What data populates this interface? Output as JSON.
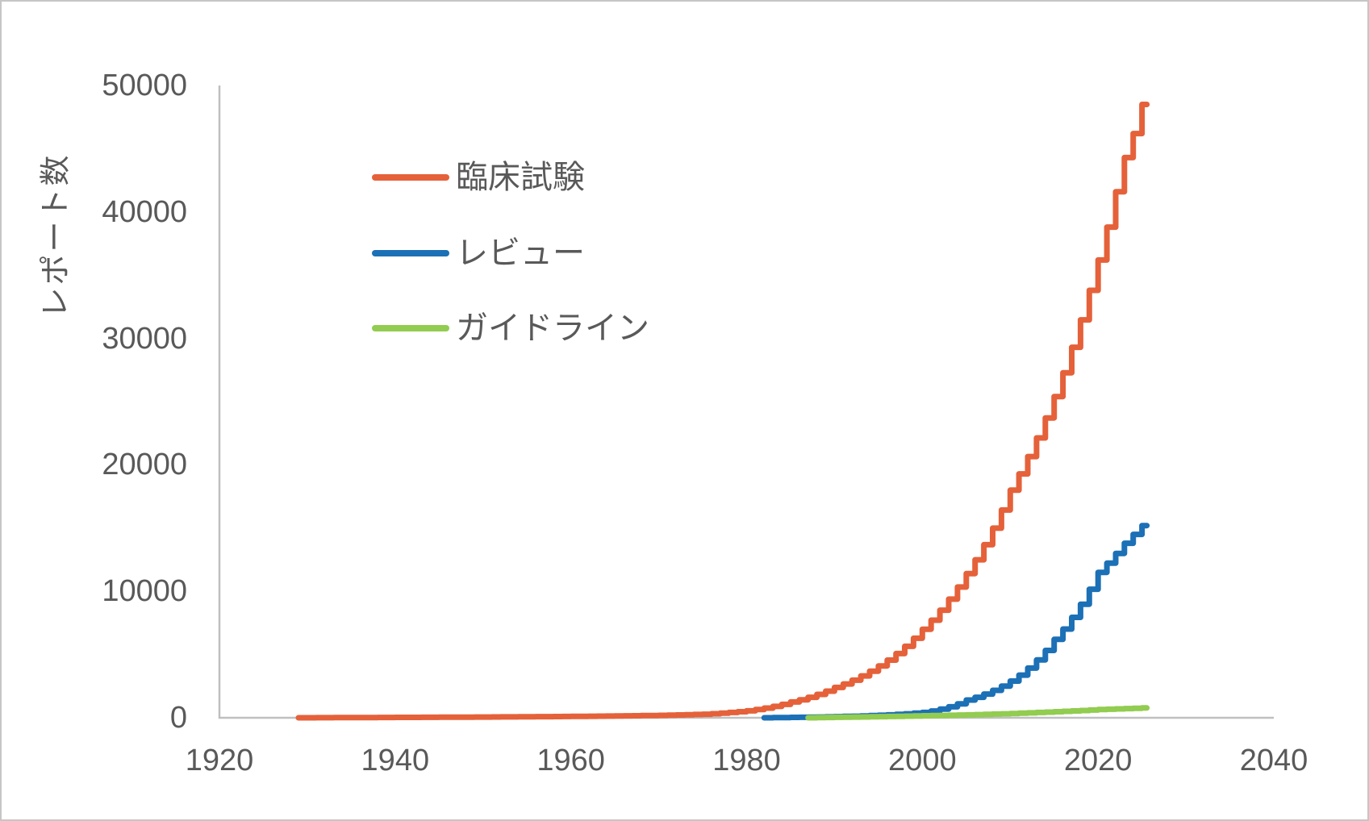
{
  "chart_data": {
    "type": "line",
    "title": "",
    "xlabel": "",
    "ylabel": "レポート数",
    "xlim": [
      1920,
      2040
    ],
    "ylim": [
      0,
      50000
    ],
    "x_ticks": [
      1920,
      1940,
      1960,
      1980,
      2000,
      2020,
      2040
    ],
    "y_ticks": [
      0,
      10000,
      20000,
      30000,
      40000,
      50000
    ],
    "grid": false,
    "legend_position": "upper-left-inside",
    "line_style": "steps-post (cumulative count per year)",
    "series": [
      {
        "name": "臨床試験",
        "color": "#E5613A",
        "points": [
          [
            1929,
            0
          ],
          [
            1940,
            30
          ],
          [
            1950,
            60
          ],
          [
            1960,
            110
          ],
          [
            1970,
            190
          ],
          [
            1975,
            280
          ],
          [
            1980,
            550
          ],
          [
            1985,
            1250
          ],
          [
            1990,
            2400
          ],
          [
            1995,
            4100
          ],
          [
            2000,
            7000
          ],
          [
            2005,
            11400
          ],
          [
            2010,
            18000
          ],
          [
            2015,
            25400
          ],
          [
            2019,
            33800
          ],
          [
            2020,
            36200
          ],
          [
            2021,
            38800
          ],
          [
            2022,
            41600
          ],
          [
            2023,
            44300
          ],
          [
            2024,
            46200
          ],
          [
            2025,
            48500
          ]
        ]
      },
      {
        "name": "レビュー",
        "color": "#1C70B6",
        "points": [
          [
            1982,
            0
          ],
          [
            1985,
            30
          ],
          [
            1990,
            90
          ],
          [
            1995,
            200
          ],
          [
            2000,
            420
          ],
          [
            2005,
            1400
          ],
          [
            2010,
            2900
          ],
          [
            2015,
            6200
          ],
          [
            2020,
            11500
          ],
          [
            2022,
            13000
          ],
          [
            2023,
            13800
          ],
          [
            2024,
            14500
          ],
          [
            2025,
            15200
          ]
        ]
      },
      {
        "name": "ガイドライン",
        "color": "#92CC50",
        "points": [
          [
            1987,
            0
          ],
          [
            1990,
            40
          ],
          [
            1995,
            90
          ],
          [
            2000,
            160
          ],
          [
            2005,
            230
          ],
          [
            2010,
            340
          ],
          [
            2015,
            480
          ],
          [
            2020,
            650
          ],
          [
            2025,
            780
          ]
        ]
      }
    ]
  },
  "colors": {
    "axis_line": "#BFBFBF",
    "tick_text": "#595959",
    "legend_text": "#595959",
    "background": "#FFFFFF",
    "page_border": "#C6C6C6"
  }
}
